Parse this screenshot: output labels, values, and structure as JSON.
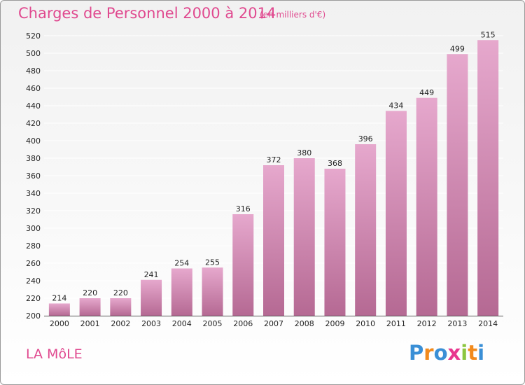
{
  "title": "Charges de Personnel 2000 à 2014",
  "subtitle": "(en milliers d'€)",
  "commune": "LA MôLE",
  "logo": {
    "letters": [
      "P",
      "r",
      "o",
      "x",
      "i",
      "t",
      "i"
    ],
    "colors": [
      "#3a8fd6",
      "#f28a1c",
      "#3a8fd6",
      "#e8368f",
      "#8cc63f",
      "#f28a1c",
      "#3a8fd6"
    ]
  },
  "colors": {
    "bar_top": "#e6a8cd",
    "bar_bottom": "#b56993",
    "text": "#e0498f",
    "grid": "#ffffff"
  },
  "chart_data": {
    "type": "bar",
    "title": "Charges de Personnel 2000 à 2014",
    "subtitle": "(en milliers d'€)",
    "categories": [
      "2000",
      "2001",
      "2002",
      "2003",
      "2004",
      "2005",
      "2006",
      "2007",
      "2008",
      "2009",
      "2010",
      "2011",
      "2012",
      "2013",
      "2014"
    ],
    "values": [
      214,
      220,
      220,
      241,
      254,
      255,
      316,
      372,
      380,
      368,
      396,
      434,
      449,
      499,
      515
    ],
    "ylim": [
      200,
      520
    ],
    "yticks": [
      200,
      220,
      240,
      260,
      280,
      300,
      320,
      340,
      360,
      380,
      400,
      420,
      440,
      460,
      480,
      500,
      520
    ],
    "grid": true,
    "data_labels": true
  }
}
